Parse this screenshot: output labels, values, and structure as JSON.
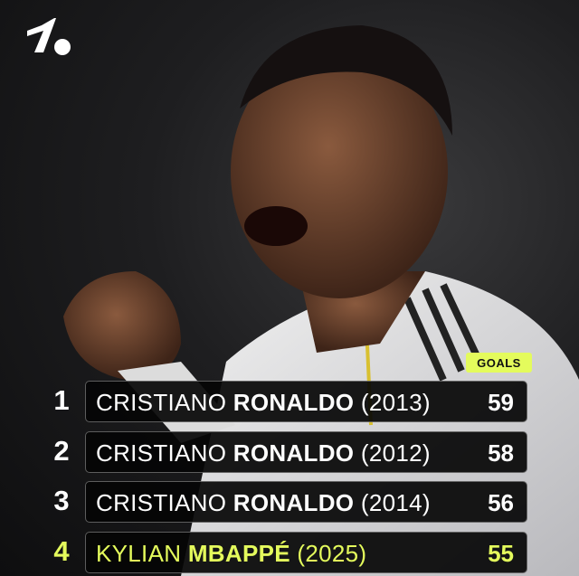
{
  "brand": {
    "logo": "1.",
    "accent_color": "#e4fb5c"
  },
  "header": {
    "column_label": "GOALS"
  },
  "rows": [
    {
      "rank": "1",
      "first": "CRISTIANO",
      "last": "RONALDO",
      "year": "(2013)",
      "goals": "59",
      "highlight": false
    },
    {
      "rank": "2",
      "first": "CRISTIANO",
      "last": "RONALDO",
      "year": "(2012)",
      "goals": "58",
      "highlight": false
    },
    {
      "rank": "3",
      "first": "CRISTIANO",
      "last": "RONALDO",
      "year": "(2014)",
      "goals": "56",
      "highlight": false
    },
    {
      "rank": "4",
      "first": "KYLIAN",
      "last": "MBAPPÉ",
      "year": "(2025)",
      "goals": "55",
      "highlight": true
    }
  ]
}
